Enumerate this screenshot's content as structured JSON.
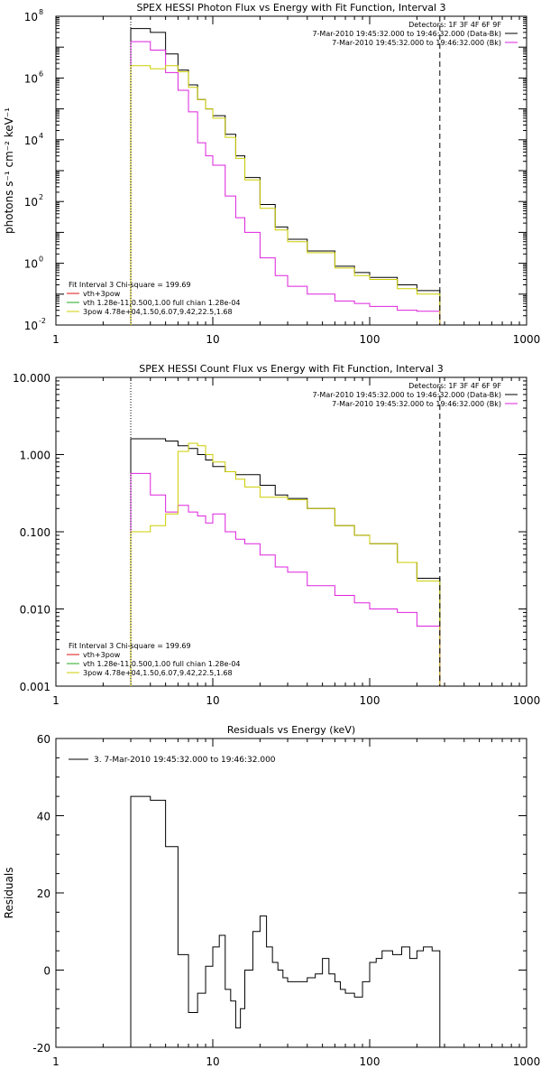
{
  "colors": {
    "axis": "#000000",
    "data": "#000000",
    "bk": "#dd22dd",
    "fit_total": "#dd1111",
    "fit_vth": "#22aa22",
    "fit_3pow": "#cccc00"
  },
  "chart_data": [
    {
      "id": "photon",
      "type": "line",
      "title": "SPEX HESSI Photon Flux vs Energy with Fit Function, Interval 3",
      "xlabel": "",
      "ylabel": "photons s⁻¹ cm⁻² keV⁻¹",
      "xscale": "log",
      "yscale": "log",
      "xlim": [
        1,
        1000
      ],
      "ylim": [
        0.01,
        100000000
      ],
      "xticks": [
        1,
        10,
        100,
        1000
      ],
      "xtick_labels": [
        "1",
        "10",
        "100",
        "1000"
      ],
      "yticks": [
        0.01,
        1,
        100,
        10000,
        1000000,
        100000000
      ],
      "ytick_labels": [
        {
          "base": "10",
          "exp": "-2"
        },
        {
          "base": "10",
          "exp": "0"
        },
        {
          "base": "10",
          "exp": "2"
        },
        {
          "base": "10",
          "exp": "4"
        },
        {
          "base": "10",
          "exp": "6"
        },
        {
          "base": "10",
          "exp": "8"
        }
      ],
      "vlines": [
        {
          "x": 3,
          "style": "dotted"
        },
        {
          "x": 280,
          "style": "dashed"
        }
      ],
      "legend_top": [
        {
          "text": "Detectors: 1F 3F 4F 6F 9F",
          "color": ""
        },
        {
          "text": "7-Mar-2010 19:45:32.000 to 19:46:32.000 (Data-Bk)",
          "color": "data"
        },
        {
          "text": "7-Mar-2010 19:45:32.000 to 19:46:32.000 (Bk)",
          "color": "bk"
        }
      ],
      "legend_bottom": [
        {
          "text": "Fit Interval 3    Chi-square = 199.69",
          "color": ""
        },
        {
          "text": "vth+3pow",
          "color": "fit_total"
        },
        {
          "text": "vth 1.28e-11,0.500,1.00  full chian 1.28e-04",
          "color": "fit_vth"
        },
        {
          "text": "3pow 4.78e+04,1.50,6.07,9.42,22.5,1.68",
          "color": "fit_3pow"
        }
      ],
      "series": [
        {
          "name": "Data-Bk",
          "color": "data",
          "x": [
            3,
            4,
            5,
            6,
            7,
            8,
            9,
            10,
            12,
            14,
            16,
            20,
            25,
            30,
            40,
            60,
            80,
            100,
            150,
            200,
            280
          ],
          "y": [
            40000000,
            30000000,
            6000000,
            1800000,
            600000,
            200000,
            100000,
            60000,
            15000,
            3000,
            600,
            80,
            15,
            6,
            2.5,
            0.8,
            0.5,
            0.35,
            0.2,
            0.13,
            0.08
          ]
        },
        {
          "name": "Bk",
          "color": "bk",
          "x": [
            3,
            4,
            5,
            6,
            7,
            8,
            9,
            10,
            12,
            14,
            16,
            20,
            25,
            30,
            40,
            60,
            80,
            100,
            150,
            200,
            280
          ],
          "y": [
            15000000,
            8000000,
            1500000,
            400000,
            80000,
            8000,
            3000,
            1500,
            150,
            30,
            10,
            1.5,
            0.4,
            0.18,
            0.1,
            0.06,
            0.05,
            0.04,
            0.03,
            0.028,
            0.02
          ]
        },
        {
          "name": "3pow",
          "color": "fit_3pow",
          "x": [
            3,
            4,
            5,
            6,
            7,
            8,
            9,
            10,
            12,
            14,
            16,
            20,
            25,
            30,
            40,
            60,
            80,
            100,
            150,
            200,
            280
          ],
          "y": [
            2500000,
            2000000,
            2500000,
            1600000,
            500000,
            200000,
            100000,
            50000,
            12000,
            2500,
            500,
            60,
            12,
            5,
            2.2,
            0.7,
            0.4,
            0.3,
            0.15,
            0.1,
            0.06
          ]
        }
      ]
    },
    {
      "id": "count",
      "type": "line",
      "title": "SPEX HESSI Count Flux vs Energy with Fit Function, Interval 3",
      "xlabel": "",
      "ylabel": "",
      "xscale": "log",
      "yscale": "log",
      "xlim": [
        1,
        1000
      ],
      "ylim": [
        0.001,
        10
      ],
      "xticks": [
        1,
        10,
        100,
        1000
      ],
      "xtick_labels": [
        "1",
        "10",
        "100",
        "1000"
      ],
      "yticks": [
        0.001,
        0.01,
        0.1,
        1,
        10
      ],
      "ytick_labels": [
        "0.001",
        "0.010",
        "0.100",
        "1.000",
        "10.000"
      ],
      "vlines": [
        {
          "x": 3,
          "style": "dotted"
        },
        {
          "x": 280,
          "style": "dashed"
        }
      ],
      "legend_top": [
        {
          "text": "Detectors: 1F 3F 4F 6F 9F",
          "color": ""
        },
        {
          "text": "7-Mar-2010 19:45:32.000 to 19:46:32.000 (Data-Bk)",
          "color": "data"
        },
        {
          "text": "7-Mar-2010 19:45:32.000 to 19:46:32.000 (Bk)",
          "color": "bk"
        }
      ],
      "legend_bottom": [
        {
          "text": "Fit Interval 3    Chi-square = 199.69",
          "color": ""
        },
        {
          "text": "vth+3pow",
          "color": "fit_total"
        },
        {
          "text": "vth 1.28e-11,0.500,1.00  full chian 1.28e-04",
          "color": "fit_vth"
        },
        {
          "text": "3pow 4.78e+04,1.50,6.07,9.42,22.5,1.68",
          "color": "fit_3pow"
        }
      ],
      "series": [
        {
          "name": "Data-Bk",
          "color": "data",
          "x": [
            3,
            4,
            5,
            6,
            7,
            8,
            9,
            10,
            12,
            14,
            16,
            20,
            25,
            30,
            40,
            60,
            80,
            100,
            150,
            200,
            280
          ],
          "y": [
            1.6,
            1.6,
            1.5,
            1.3,
            1.2,
            1.0,
            0.85,
            0.7,
            0.6,
            0.55,
            0.55,
            0.4,
            0.3,
            0.27,
            0.2,
            0.12,
            0.09,
            0.07,
            0.04,
            0.025,
            0.013
          ]
        },
        {
          "name": "Bk",
          "color": "bk",
          "x": [
            3,
            4,
            5,
            6,
            7,
            8,
            9,
            10,
            12,
            14,
            16,
            20,
            25,
            30,
            40,
            60,
            80,
            100,
            150,
            200,
            280
          ],
          "y": [
            0.57,
            0.3,
            0.18,
            0.22,
            0.18,
            0.16,
            0.13,
            0.17,
            0.1,
            0.08,
            0.07,
            0.05,
            0.035,
            0.03,
            0.02,
            0.015,
            0.012,
            0.01,
            0.009,
            0.006,
            0.004
          ]
        },
        {
          "name": "3pow",
          "color": "fit_3pow",
          "x": [
            3,
            4,
            5,
            6,
            7,
            8,
            9,
            10,
            12,
            14,
            16,
            20,
            25,
            30,
            40,
            60,
            80,
            100,
            150,
            200,
            280
          ],
          "y": [
            0.1,
            0.12,
            0.17,
            1.1,
            1.4,
            1.3,
            1.0,
            0.8,
            0.6,
            0.48,
            0.38,
            0.28,
            0.28,
            0.26,
            0.2,
            0.12,
            0.09,
            0.07,
            0.04,
            0.023,
            0.011
          ]
        }
      ]
    },
    {
      "id": "resid",
      "type": "line",
      "title": "Residuals vs Energy (keV)",
      "xlabel": "",
      "ylabel": "Residuals",
      "xscale": "log",
      "yscale": "linear",
      "xlim": [
        1,
        1000
      ],
      "ylim": [
        -20,
        60
      ],
      "xticks": [
        1,
        10,
        100,
        1000
      ],
      "xtick_labels": [
        "1",
        "10",
        "100",
        "1000"
      ],
      "yticks": [
        -20,
        0,
        20,
        40,
        60
      ],
      "ytick_labels": [
        "-20",
        "0",
        "20",
        "40",
        "60"
      ],
      "vlines": [],
      "legend_top": [
        {
          "text": "3.  7-Mar-2010 19:45:32.000 to 19:46:32.000",
          "color": "data"
        }
      ],
      "legend_bottom": [],
      "series": [
        {
          "name": "3.  7-Mar-2010 19:45:32.000 to 19:46:32.000",
          "color": "data",
          "x": [
            3,
            4,
            5,
            6,
            7,
            8,
            9,
            10,
            11,
            12,
            13,
            14,
            15,
            16,
            18,
            20,
            22,
            24,
            26,
            28,
            30,
            35,
            40,
            45,
            50,
            55,
            60,
            65,
            70,
            80,
            90,
            100,
            110,
            120,
            140,
            160,
            180,
            200,
            220,
            250,
            280
          ],
          "y": [
            45,
            44,
            32,
            4,
            -11,
            -6,
            1,
            6,
            9,
            -5,
            -8,
            -15,
            -10,
            0,
            10,
            14,
            6,
            2,
            0,
            -2,
            -3,
            -3,
            -2,
            -1,
            3,
            -1,
            -3,
            -5,
            -6,
            -7,
            -3,
            2,
            3,
            5,
            4,
            6,
            3,
            5,
            6,
            5,
            6
          ]
        }
      ]
    }
  ]
}
